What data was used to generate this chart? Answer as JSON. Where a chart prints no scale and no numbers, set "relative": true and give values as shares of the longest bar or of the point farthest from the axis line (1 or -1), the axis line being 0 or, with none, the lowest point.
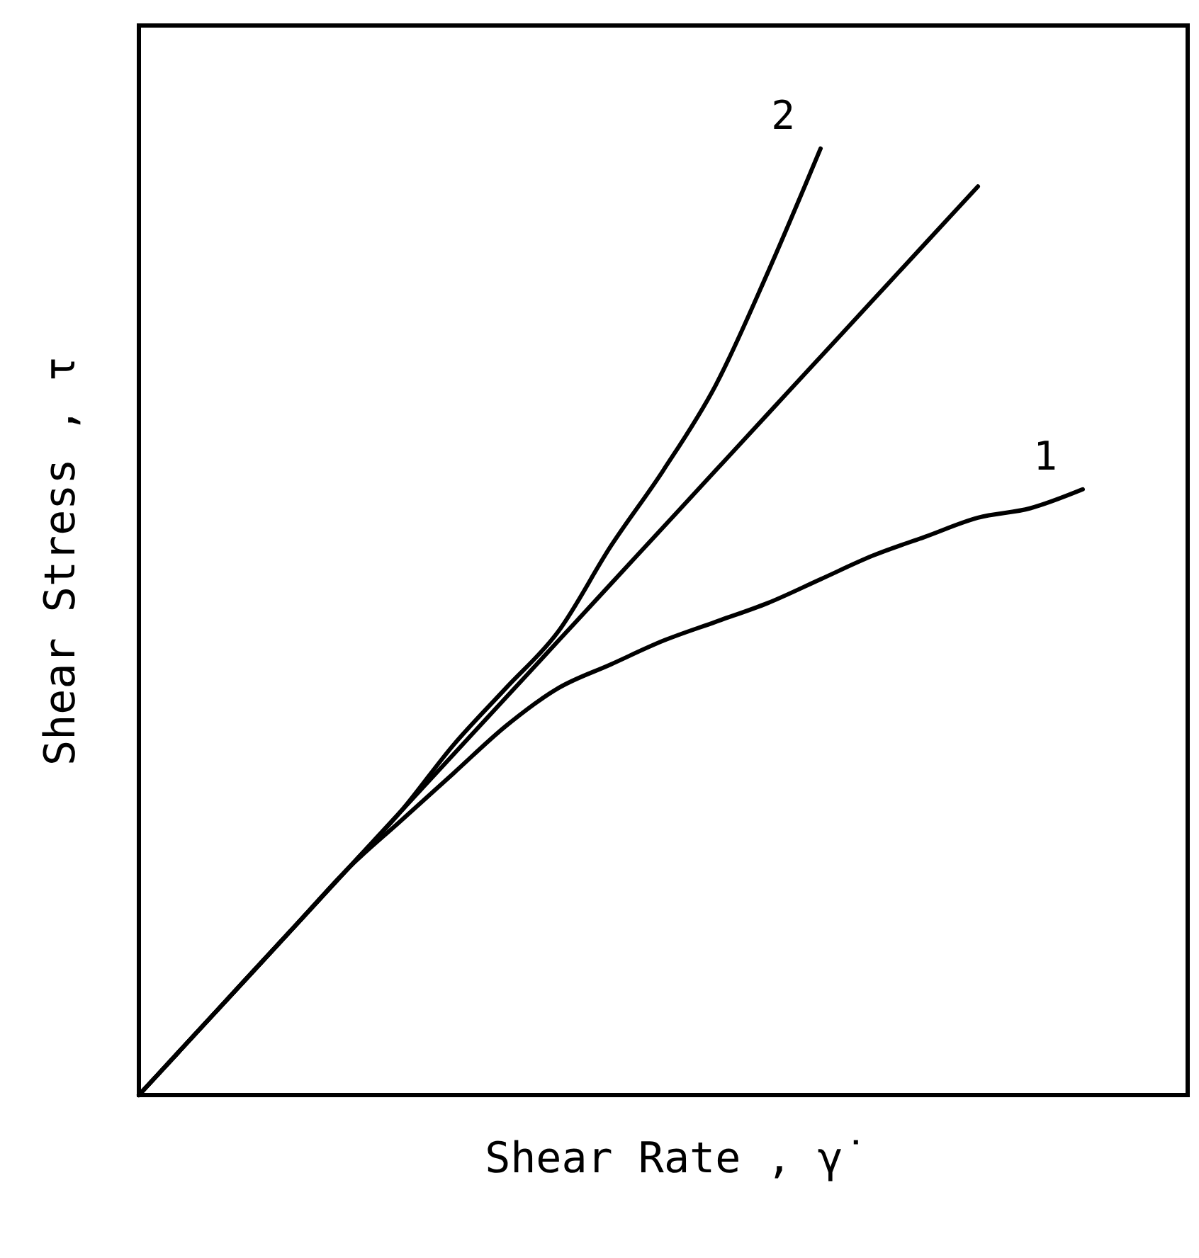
{
  "chart_data": {
    "type": "line",
    "relative": true,
    "xlabel": "Shear Rate , γ̇",
    "ylabel": "Shear Stress , τ",
    "categories": [
      null,
      null,
      null,
      null,
      null,
      null,
      null,
      null,
      null,
      null,
      null,
      null,
      null,
      null,
      null,
      null,
      null,
      null,
      null,
      null,
      null
    ],
    "series": [
      {
        "color": "#000000",
        "values": [
          0,
          0.06,
          0.12,
          0.18,
          0.24,
          0.3,
          0.36,
          0.42,
          0.48,
          0.54,
          0.6,
          0.66,
          0.72,
          0.78,
          0.84,
          0.9,
          0.96,
          null,
          null,
          null,
          null
        ]
      },
      {
        "name": "1",
        "color": "#000000",
        "values": [
          0,
          0.06,
          0.12,
          0.18,
          0.24,
          0.29,
          0.34,
          0.39,
          0.43,
          0.455,
          0.48,
          0.5,
          0.52,
          0.545,
          0.57,
          0.59,
          0.61,
          0.62,
          0.64,
          null,
          null
        ]
      },
      {
        "name": "2",
        "color": "#000000",
        "values": [
          0,
          0.06,
          0.12,
          0.18,
          0.24,
          0.3,
          0.37,
          0.43,
          0.49,
          0.58,
          0.66,
          0.75,
          0.87,
          1,
          null,
          null,
          null,
          null,
          null,
          null,
          null
        ]
      }
    ],
    "grid": false,
    "line_style": "solid",
    "marker": "none"
  }
}
